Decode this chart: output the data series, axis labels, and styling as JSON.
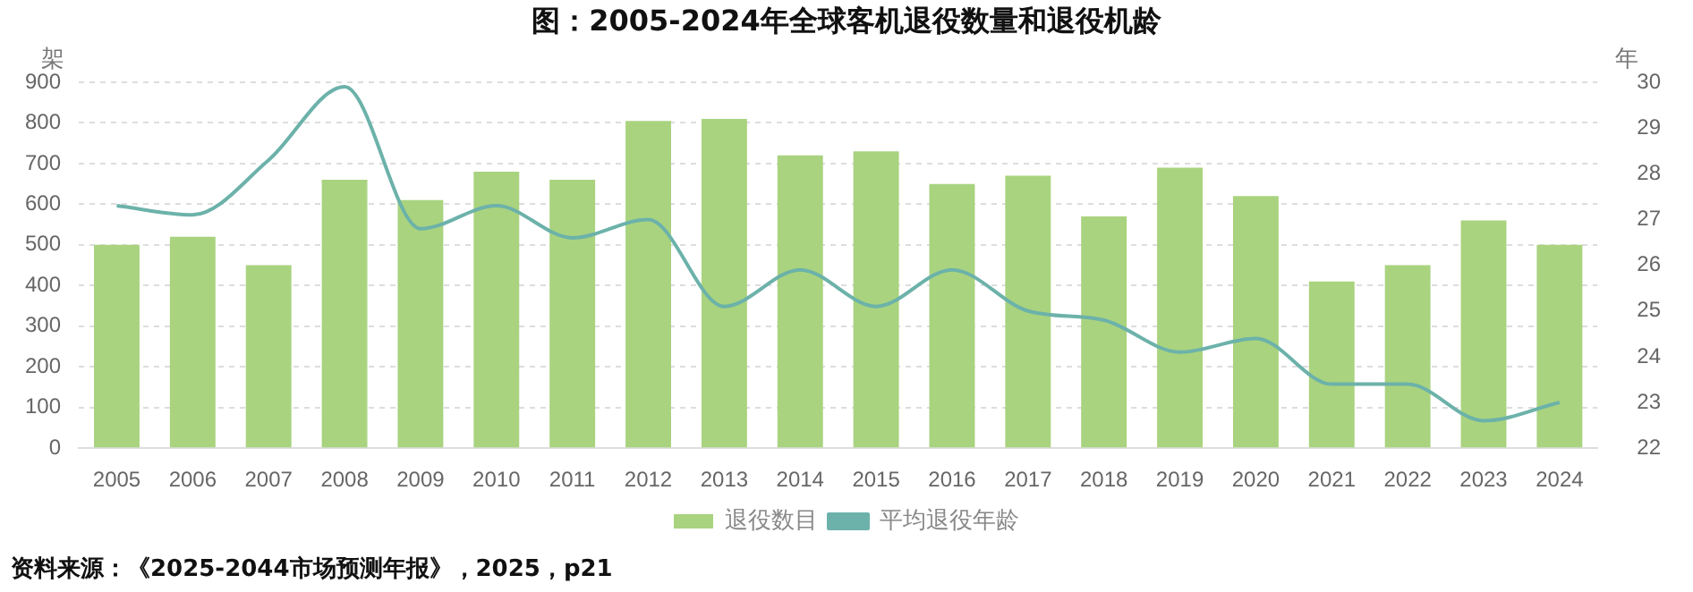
{
  "chart_data": {
    "type": "bar",
    "title": "图：2005-2024年全球客机退役数量和退役机龄",
    "categories": [
      "2005",
      "2006",
      "2007",
      "2008",
      "2009",
      "2010",
      "2011",
      "2012",
      "2013",
      "2014",
      "2015",
      "2016",
      "2017",
      "2018",
      "2019",
      "2020",
      "2021",
      "2022",
      "2023",
      "2024"
    ],
    "series": [
      {
        "name": "退役数目",
        "color": "#a9d37f",
        "values": [
          500,
          520,
          450,
          660,
          610,
          680,
          660,
          805,
          810,
          720,
          730,
          650,
          670,
          570,
          690,
          620,
          410,
          450,
          560,
          500
        ]
      },
      {
        "name": "平均退役年龄",
        "type": "line",
        "axis": "y2",
        "color": "#6cb2aa",
        "values": [
          27.3,
          27.1,
          28.3,
          29.9,
          26.8,
          27.3,
          26.6,
          27.0,
          25.1,
          25.9,
          25.1,
          25.9,
          25.0,
          24.8,
          24.1,
          24.4,
          23.4,
          23.4,
          22.6,
          23.0
        ]
      }
    ],
    "ylabel": "架",
    "y2label": "年",
    "ylim": [
      0,
      900
    ],
    "yticks": [
      0,
      100,
      200,
      300,
      400,
      500,
      600,
      700,
      800,
      900
    ],
    "y2lim": [
      22,
      30
    ],
    "y2ticks": [
      22,
      23,
      24,
      25,
      26,
      27,
      28,
      29,
      30
    ],
    "grid": "y",
    "legend": "bottom",
    "marker": "none",
    "annotations": [
      "资料来源：《2025-2044市场预测年报》，2025，p21"
    ]
  }
}
